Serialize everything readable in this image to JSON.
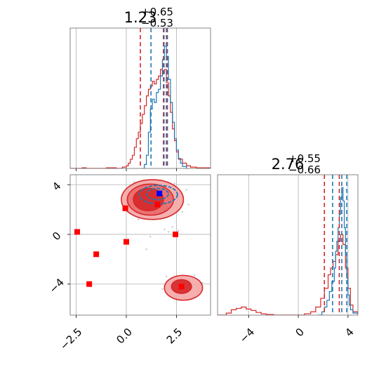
{
  "chart_data": {
    "type": "corner",
    "colors": {
      "red": "#d62728",
      "blue": "#1f77b4",
      "red_fill": "#f4a6a6",
      "marker_red": "#ff0000",
      "marker_blue": "#0000ff",
      "grid": "#b0b0b0"
    },
    "panels": [
      {
        "id": "param1-marginal",
        "type": "histogram",
        "title": {
          "median": "1.23",
          "plus": "+0.65",
          "minus": "−0.53"
        },
        "xlim": [
          -2.8,
          4.2
        ],
        "grid_x": [
          -2.5,
          0.0,
          2.5
        ],
        "show_x_ticklabels": false,
        "red_lines": [
          0.7,
          1.85,
          2.0
        ],
        "blue_lines": [
          1.23,
          1.88,
          2.05
        ],
        "red_hist": {
          "x": [
            -2.8,
            -2.2,
            -2.0,
            -1.5,
            -1.0,
            -0.5,
            -0.2,
            0.0,
            0.1,
            0.2,
            0.3,
            0.4,
            0.5,
            0.6,
            0.7,
            0.8,
            0.9,
            1.0,
            1.1,
            1.2,
            1.3,
            1.4,
            1.5,
            1.6,
            1.7,
            1.8,
            1.9,
            2.0,
            2.1,
            2.2,
            2.3,
            2.4,
            2.5,
            2.6,
            2.8,
            3.0,
            3.2,
            3.5,
            4.2
          ],
          "y": [
            0,
            1,
            0,
            0,
            1,
            0,
            2,
            4,
            8,
            14,
            20,
            32,
            45,
            55,
            68,
            82,
            95,
            110,
            120,
            125,
            132,
            128,
            135,
            140,
            150,
            145,
            150,
            130,
            110,
            85,
            60,
            42,
            25,
            14,
            8,
            4,
            2,
            1,
            0
          ]
        },
        "blue_hist": {
          "x": [
            0.8,
            0.9,
            1.0,
            1.1,
            1.2,
            1.3,
            1.4,
            1.5,
            1.6,
            1.7,
            1.8,
            1.9,
            2.0,
            2.1,
            2.2,
            2.3,
            2.4,
            2.5,
            2.6,
            2.7,
            2.8,
            3.0
          ],
          "y": [
            0,
            6,
            20,
            55,
            90,
            105,
            100,
            115,
            120,
            140,
            165,
            185,
            170,
            135,
            100,
            70,
            45,
            28,
            15,
            8,
            3,
            0
          ]
        }
      },
      {
        "id": "param2-marginal",
        "type": "histogram",
        "title": {
          "median": "2.76",
          "plus": "+0.55",
          "minus": "−0.66"
        },
        "xlim": [
          -6.5,
          4.8
        ],
        "xticks": [
          -4,
          0,
          4
        ],
        "xtick_labels": [
          "−4",
          "0",
          "4"
        ],
        "red_lines": [
          2.1,
          3.3
        ],
        "blue_lines": [
          2.76,
          3.5,
          3.9
        ],
        "red_hist": {
          "x": [
            -6.5,
            -5.8,
            -5.4,
            -5.0,
            -4.6,
            -4.2,
            -3.8,
            -3.4,
            -3.0,
            -2.6,
            -2.0,
            -1.0,
            0.0,
            0.5,
            1.0,
            1.4,
            1.8,
            2.1,
            2.4,
            2.6,
            2.8,
            3.0,
            3.2,
            3.4,
            3.6,
            3.8,
            4.0,
            4.2,
            4.4,
            4.8
          ],
          "y": [
            0,
            3,
            8,
            10,
            12,
            9,
            7,
            4,
            2,
            1,
            0,
            0,
            0,
            2,
            5,
            12,
            25,
            40,
            60,
            70,
            80,
            90,
            110,
            120,
            105,
            70,
            40,
            15,
            5,
            0
          ]
        },
        "blue_hist": {
          "x": [
            1.6,
            1.9,
            2.1,
            2.3,
            2.5,
            2.7,
            2.9,
            3.0,
            3.1,
            3.2,
            3.3,
            3.4,
            3.5,
            3.6,
            3.7,
            3.8,
            3.9,
            4.0,
            4.1,
            4.2,
            4.4,
            4.8
          ],
          "y": [
            0,
            5,
            12,
            22,
            35,
            50,
            70,
            95,
            110,
            130,
            150,
            175,
            190,
            170,
            130,
            90,
            55,
            30,
            15,
            8,
            3,
            0
          ]
        }
      },
      {
        "id": "joint",
        "type": "scatter-contour",
        "xlim": [
          -2.8,
          4.2
        ],
        "ylim": [
          -6.5,
          4.8
        ],
        "xticks": [
          -2.5,
          0.0,
          2.5
        ],
        "xtick_labels": [
          "−2.5",
          "0.0",
          "2.5"
        ],
        "yticks": [
          4,
          0,
          -4
        ],
        "ytick_labels": [
          "4",
          "0",
          "−4"
        ],
        "red_markers": [
          {
            "x": -2.45,
            "y": 0.2
          },
          {
            "x": -1.5,
            "y": -1.6
          },
          {
            "x": -1.85,
            "y": -4.0
          },
          {
            "x": -0.05,
            "y": 2.1
          },
          {
            "x": 0.0,
            "y": -0.6
          },
          {
            "x": 2.45,
            "y": 0.0
          },
          {
            "x": 1.55,
            "y": 2.4
          },
          {
            "x": 2.75,
            "y": -4.2
          }
        ],
        "blue_markers": [
          {
            "x": 1.65,
            "y": 3.3
          }
        ],
        "red_contours": [
          {
            "cx": 1.3,
            "cy": 2.8,
            "rx": 1.55,
            "ry": 1.6,
            "level": "outer"
          },
          {
            "cx": 1.2,
            "cy": 2.8,
            "rx": 1.15,
            "ry": 1.25,
            "level": "mid"
          },
          {
            "cx": 1.1,
            "cy": 2.8,
            "rx": 0.75,
            "ry": 0.9,
            "level": "inner"
          },
          {
            "cx": 2.85,
            "cy": -4.3,
            "rx": 0.95,
            "ry": 1.0,
            "level": "outer"
          },
          {
            "cx": 2.75,
            "cy": -4.2,
            "rx": 0.5,
            "ry": 0.55,
            "level": "inner"
          }
        ],
        "blue_contours": [
          {
            "cx": 1.6,
            "cy": 3.2,
            "rx": 0.95,
            "ry": 0.75
          },
          {
            "cx": 1.55,
            "cy": 3.25,
            "rx": 0.55,
            "ry": 0.45
          }
        ],
        "scatter_points": [
          {
            "x": 0.1,
            "y": -0.5
          },
          {
            "x": 0.6,
            "y": 1.2
          },
          {
            "x": 1.9,
            "y": 0.4
          },
          {
            "x": 2.1,
            "y": 0.2
          },
          {
            "x": 2.3,
            "y": 0.6
          },
          {
            "x": 0.4,
            "y": 4.2
          },
          {
            "x": 2.8,
            "y": 1.8
          },
          {
            "x": 3.1,
            "y": 2.4
          },
          {
            "x": 1.0,
            "y": 1.6
          },
          {
            "x": 1.5,
            "y": 1.5
          },
          {
            "x": 1.0,
            "y": -1.2
          },
          {
            "x": 2.0,
            "y": -3.4
          },
          {
            "x": 1.8,
            "y": -4.4
          },
          {
            "x": 2.1,
            "y": -4.1
          },
          {
            "x": 3.6,
            "y": -4.6
          },
          {
            "x": 3.8,
            "y": -3.9
          },
          {
            "x": 3.4,
            "y": -3.3
          },
          {
            "x": 1.2,
            "y": -0.2
          },
          {
            "x": 2.6,
            "y": 0.3
          },
          {
            "x": 0.3,
            "y": 2.6
          },
          {
            "x": 3.0,
            "y": 3.6
          },
          {
            "x": 2.4,
            "y": 4.1
          },
          {
            "x": 0.8,
            "y": 4.0
          },
          {
            "x": 2.9,
            "y": -5.0
          }
        ]
      }
    ]
  }
}
